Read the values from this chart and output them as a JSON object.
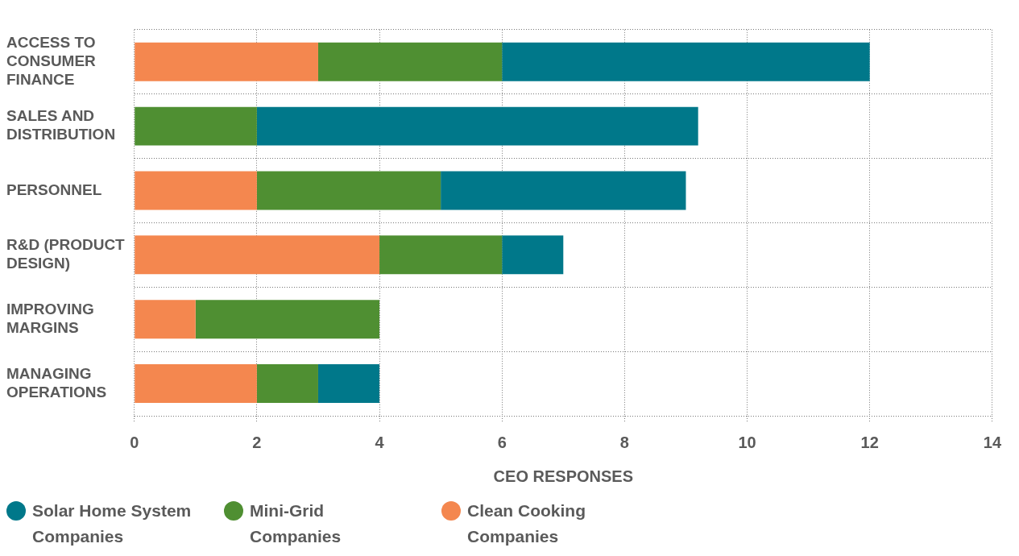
{
  "chart_data": {
    "type": "bar",
    "orientation": "horizontal",
    "stacked": true,
    "categories": [
      "ACCESS TO CONSUMER FINANCE",
      "SALES AND DISTRIBUTION",
      "PERSONNEL",
      "R&D (PRODUCT DESIGN)",
      "IMPROVING MARGINS",
      "MANAGING OPERATIONS"
    ],
    "series": [
      {
        "name": "Clean Cooking Companies",
        "color": "#f4874f",
        "values": [
          3,
          0,
          2,
          4,
          1,
          2
        ]
      },
      {
        "name": "Mini-Grid Companies",
        "color": "#4f8f32",
        "values": [
          3,
          2,
          3,
          2,
          3,
          1
        ]
      },
      {
        "name": "Solar Home System Companies",
        "color": "#00788a",
        "values": [
          6,
          7.2,
          4,
          1,
          0,
          1
        ]
      }
    ],
    "xlabel": "CEO RESPONSES",
    "xlim": [
      0,
      14
    ],
    "xticks": [
      0,
      2,
      4,
      6,
      8,
      10,
      12,
      14
    ],
    "grid": true,
    "legend": "bottom left"
  }
}
